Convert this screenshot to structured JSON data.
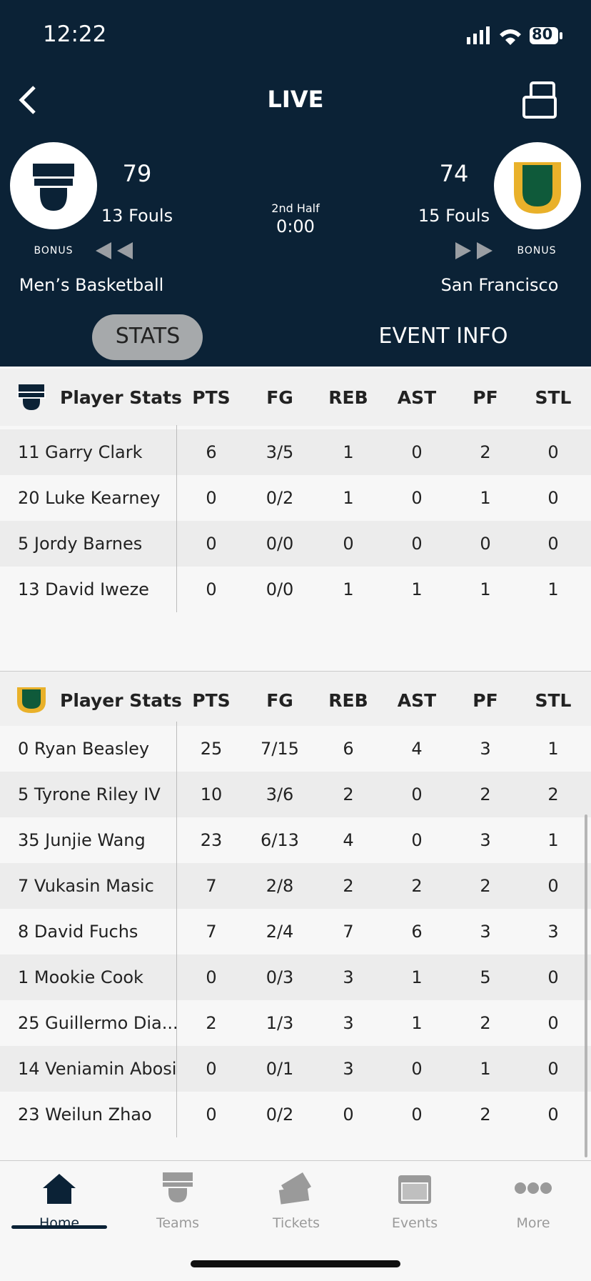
{
  "status_bar": {
    "time": "12:22",
    "battery": "80"
  },
  "header": {
    "title": "LIVE"
  },
  "scoreboard": {
    "home": {
      "score": 79,
      "fouls": "13 Fouls",
      "bonus": "BONUS",
      "name": "Men’s Basketball"
    },
    "period": "2nd Half",
    "clock": "0:00",
    "away": {
      "score": 74,
      "fouls": "15 Fouls",
      "bonus": "BONUS",
      "name": "San Francisco"
    }
  },
  "tabs": [
    "STATS",
    "EVENT INFO"
  ],
  "tables": [
    {
      "title": "Player Stats",
      "columns": [
        "PTS",
        "FG",
        "REB",
        "AST",
        "PF",
        "STL"
      ],
      "rows": [
        [
          "11 Garry Clark",
          6,
          "3/5",
          1,
          0,
          2,
          0
        ],
        [
          "20 Luke Kearney",
          0,
          "0/2",
          1,
          0,
          1,
          0
        ],
        [
          "5 Jordy Barnes",
          0,
          "0/0",
          0,
          0,
          0,
          0
        ],
        [
          "13 David Iweze",
          0,
          "0/0",
          1,
          1,
          1,
          1
        ]
      ]
    },
    {
      "title": "Player Stats",
      "columns": [
        "PTS",
        "FG",
        "REB",
        "AST",
        "PF",
        "STL"
      ],
      "rows": [
        [
          "0 Ryan Beasley",
          25,
          "7/15",
          6,
          4,
          3,
          1
        ],
        [
          "5 Tyrone Riley IV",
          10,
          "3/6",
          2,
          0,
          2,
          2
        ],
        [
          "35 Junjie Wang",
          23,
          "6/13",
          4,
          0,
          3,
          1
        ],
        [
          "7 Vukasin Masic",
          7,
          "2/8",
          2,
          2,
          2,
          0
        ],
        [
          "8 David Fuchs",
          7,
          "2/4",
          7,
          6,
          3,
          3
        ],
        [
          "1 Mookie Cook",
          0,
          "0/3",
          3,
          1,
          5,
          0
        ],
        [
          "25 Guillermo Dia...",
          2,
          "1/3",
          3,
          1,
          2,
          0
        ],
        [
          "14 Veniamin Abosi",
          0,
          "0/1",
          3,
          0,
          1,
          0
        ],
        [
          "23 Weilun Zhao",
          0,
          "0/2",
          0,
          0,
          2,
          0
        ]
      ]
    }
  ],
  "nav": [
    "Home",
    "Teams",
    "Tickets",
    "Events",
    "More"
  ]
}
